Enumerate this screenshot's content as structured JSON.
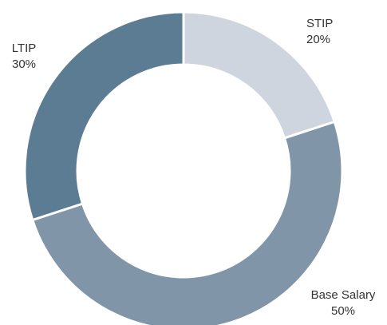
{
  "chart_data": {
    "type": "pie",
    "categories": [
      "STIP",
      "Base Salary",
      "LTIP"
    ],
    "values": [
      20,
      50,
      30
    ],
    "value_labels": [
      "20%",
      "50%",
      "30%"
    ],
    "colors": [
      "#cfd5df",
      "#8096a8",
      "#5b7c93"
    ],
    "donut": true
  }
}
